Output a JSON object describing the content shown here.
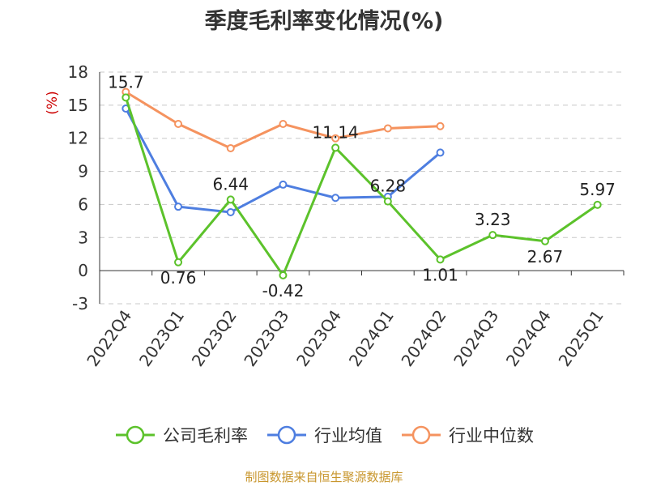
{
  "chart_data": {
    "type": "line",
    "title": "季度毛利率变化情况(%)",
    "ylabel": "(%)",
    "categories": [
      "2022Q4",
      "2023Q1",
      "2023Q2",
      "2023Q3",
      "2023Q4",
      "2024Q1",
      "2024Q2",
      "2024Q3",
      "2024Q4",
      "2025Q1"
    ],
    "ylim": [
      -3,
      18
    ],
    "yticks": [
      -3,
      0,
      3,
      6,
      9,
      12,
      15,
      18
    ],
    "grid": true,
    "legend_position": "bottom",
    "series": [
      {
        "name": "公司毛利率",
        "color": "#5cc22b",
        "values": [
          15.7,
          0.76,
          6.44,
          -0.42,
          11.14,
          6.28,
          1.01,
          3.23,
          2.67,
          5.97
        ],
        "labels": [
          "15.7",
          "0.76",
          "6.44",
          "-0.42",
          "11.14",
          "6.28",
          "1.01",
          "3.23",
          "2.67",
          "5.97"
        ]
      },
      {
        "name": "行业均值",
        "color": "#4e7ee0",
        "values": [
          14.7,
          5.8,
          5.3,
          7.8,
          6.6,
          6.7,
          10.7,
          null,
          null,
          null
        ]
      },
      {
        "name": "行业中位数",
        "color": "#f5935f",
        "values": [
          16.2,
          13.3,
          11.1,
          13.3,
          12.0,
          12.9,
          13.1,
          null,
          null,
          null
        ]
      }
    ]
  },
  "footer": {
    "source": "制图数据来自恒生聚源数据库"
  }
}
